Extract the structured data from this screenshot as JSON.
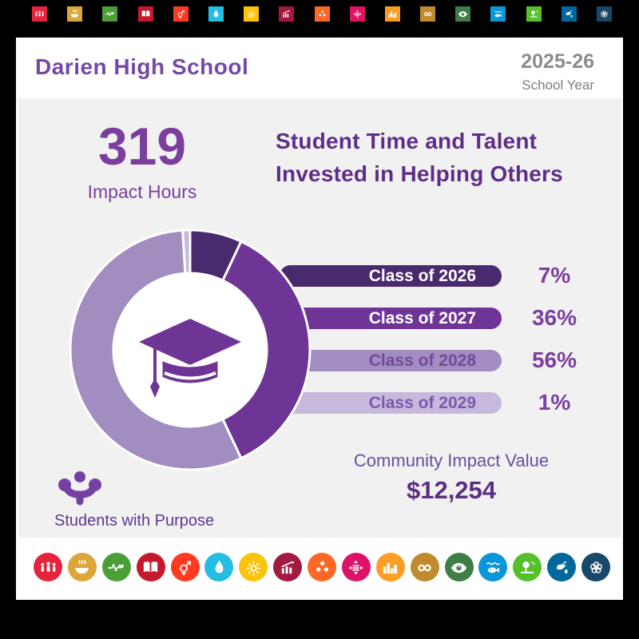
{
  "header": {
    "school_name": "Darien High School",
    "school_year": "2025-26",
    "school_year_label": "School Year"
  },
  "stats": {
    "impact_hours": "319",
    "impact_hours_label": "Impact Hours"
  },
  "title": {
    "line1": "Student Time and Talent",
    "line2": "Invested in Helping Others"
  },
  "chart_data": {
    "type": "pie",
    "subtype": "donut",
    "title": "Impact hours share by class year",
    "categories": [
      "Class of 2026",
      "Class of 2027",
      "Class of 2028",
      "Class of 2029"
    ],
    "values": [
      7,
      36,
      56,
      1
    ],
    "unit": "percent",
    "value_labels": [
      "7%",
      "36%",
      "56%",
      "1%"
    ],
    "segment_colors": [
      "#4A2A6E",
      "#6F3596",
      "#A18DBF",
      "#C6B9DC"
    ],
    "bar_text_colors": [
      "#FFFFFF",
      "#FFFFFF",
      "#6F4A9E",
      "#7E59AB"
    ],
    "start_angle_deg": 0,
    "direction": "clockwise",
    "center_icon": "graduation-cap-icon",
    "legend_position": "right-bars"
  },
  "impact_value": {
    "label": "Community Impact Value",
    "value": "$12,254"
  },
  "footer": {
    "logo_label": "Students with Purpose",
    "logo_icon": "students-with-purpose-icon"
  },
  "sdg_goals": [
    {
      "name": "no-poverty-icon",
      "color": "#E5243B"
    },
    {
      "name": "zero-hunger-icon",
      "color": "#DDA63A"
    },
    {
      "name": "good-health-icon",
      "color": "#4C9F38"
    },
    {
      "name": "quality-education-icon",
      "color": "#C5192D"
    },
    {
      "name": "gender-equality-icon",
      "color": "#FF3A21"
    },
    {
      "name": "clean-water-icon",
      "color": "#26BDE2"
    },
    {
      "name": "affordable-energy-icon",
      "color": "#FCC30B"
    },
    {
      "name": "decent-work-icon",
      "color": "#A21942"
    },
    {
      "name": "industry-innovation-icon",
      "color": "#FD6925"
    },
    {
      "name": "reduced-inequalities-icon",
      "color": "#DD1367"
    },
    {
      "name": "sustainable-cities-icon",
      "color": "#FD9D24"
    },
    {
      "name": "responsible-consumption-icon",
      "color": "#BF8B2E"
    },
    {
      "name": "climate-action-icon",
      "color": "#3F7E44"
    },
    {
      "name": "life-below-water-icon",
      "color": "#0A97D9"
    },
    {
      "name": "life-on-land-icon",
      "color": "#56C02B"
    },
    {
      "name": "peace-justice-icon",
      "color": "#00689D"
    },
    {
      "name": "partnerships-icon",
      "color": "#19486A"
    }
  ],
  "colors": {
    "page_bg": "#000000",
    "card_bg": "#FFFFFF",
    "panel_bg": "#F2F1F2",
    "accent_purple": "#7A3F9D",
    "title_purple": "#5E2E87",
    "value_purple": "#5B2D84",
    "header_purple": "#7449A5",
    "gray_text": "#8C8C8C",
    "cap_purple": "#6F3596",
    "logo_purple": "#7440A3"
  }
}
